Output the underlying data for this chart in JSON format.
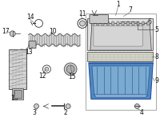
{
  "background_color": "#ffffff",
  "fig_width": 2.0,
  "fig_height": 1.47,
  "dpi": 100,
  "gray": "#555555",
  "dark": "#333333",
  "blue_fill": "#5588bb",
  "blue_light": "#7aaacf",
  "blue_mid": "#4477aa"
}
